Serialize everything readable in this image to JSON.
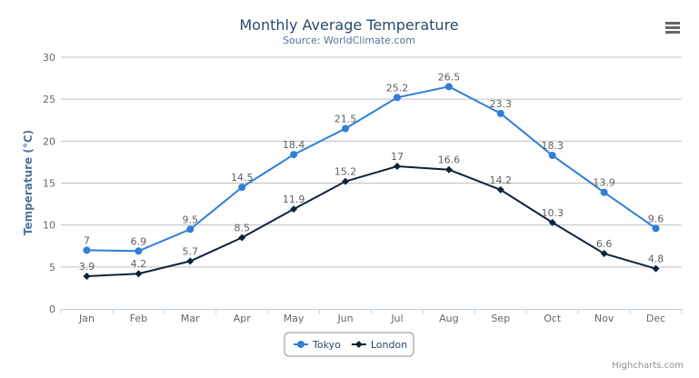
{
  "chart_data": {
    "type": "line",
    "title": "Monthly Average Temperature",
    "subtitle": "Source: WorldClimate.com",
    "ylabel": "Temperature (°C)",
    "xlabel": "",
    "ylim": [
      0,
      30
    ],
    "yticks": [
      0,
      5,
      10,
      15,
      20,
      25,
      30
    ],
    "grid": true,
    "legend_placement": "bottom-center",
    "categories": [
      "Jan",
      "Feb",
      "Mar",
      "Apr",
      "May",
      "Jun",
      "Jul",
      "Aug",
      "Sep",
      "Oct",
      "Nov",
      "Dec"
    ],
    "series": [
      {
        "name": "Tokyo",
        "color": "#2f7ed8",
        "marker": "circle",
        "values": [
          7.0,
          6.9,
          9.5,
          14.5,
          18.4,
          21.5,
          25.2,
          26.5,
          23.3,
          18.3,
          13.9,
          9.6
        ]
      },
      {
        "name": "London",
        "color": "#0d233a",
        "marker": "diamond",
        "values": [
          3.9,
          4.2,
          5.7,
          8.5,
          11.9,
          15.2,
          17.0,
          16.6,
          14.2,
          10.3,
          6.6,
          4.8
        ]
      }
    ]
  },
  "credits": "Highcharts.com",
  "menu_icon": "hamburger-menu-icon"
}
